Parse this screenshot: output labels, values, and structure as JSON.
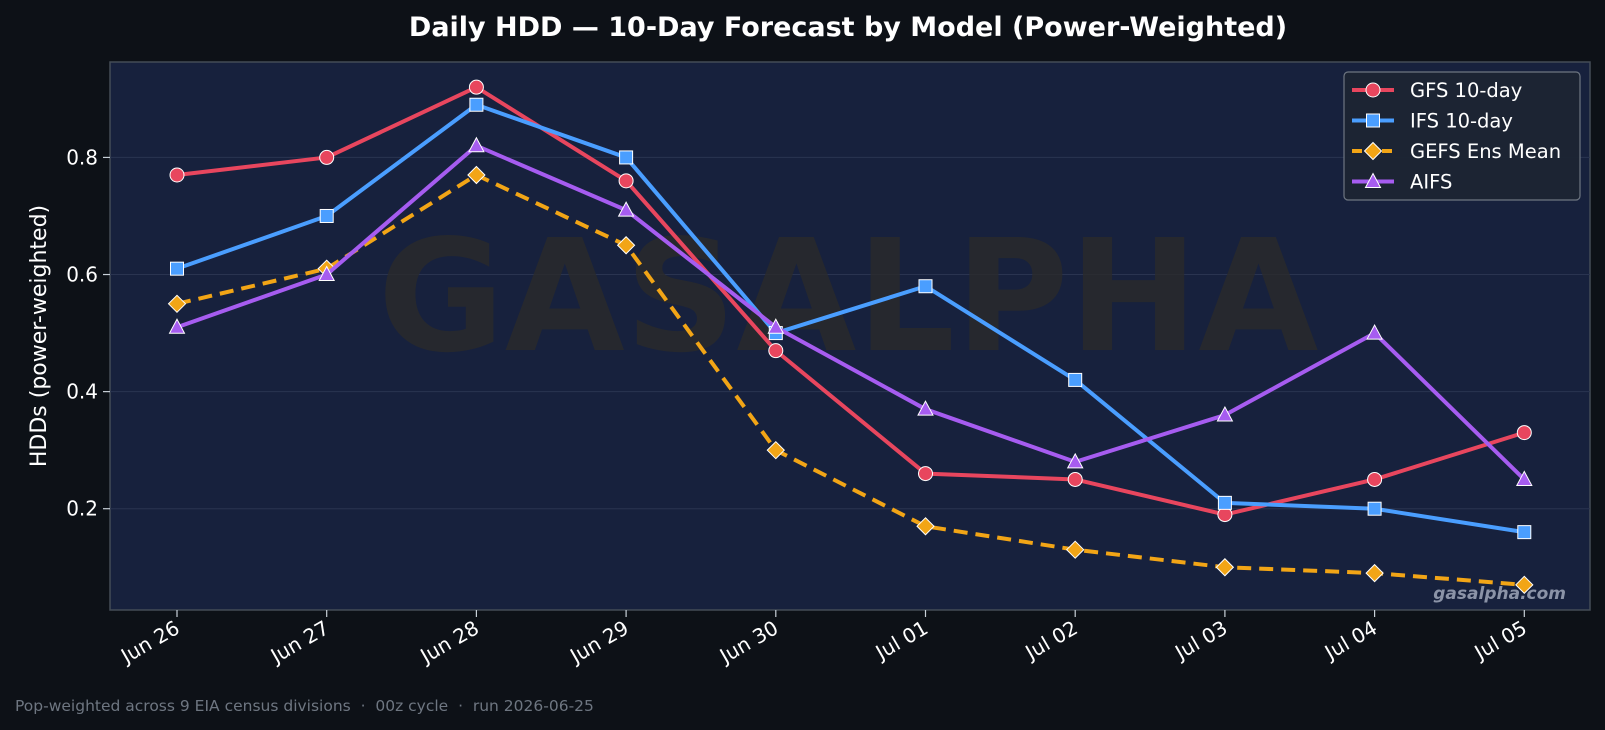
{
  "chart_data": {
    "type": "line",
    "title": "Daily HDD — 10-Day Forecast by Model (Power-Weighted)",
    "xlabel": "",
    "ylabel": "HDDs (power-weighted)",
    "categories": [
      "Jun 26",
      "Jun 27",
      "Jun 28",
      "Jun 29",
      "Jun 30",
      "Jul 01",
      "Jul 02",
      "Jul 03",
      "Jul 04",
      "Jul 05"
    ],
    "ylim": [
      0.027,
      0.963
    ],
    "yticks": [
      0.2,
      0.4,
      0.6,
      0.8
    ],
    "ytick_labels": [
      "0.2",
      "0.4",
      "0.6",
      "0.8"
    ],
    "grid": true,
    "legend_position": "top-right",
    "series": [
      {
        "name": "GFS 10-day",
        "color": "#e8465e",
        "dash": "solid",
        "marker": "circle",
        "values": [
          0.77,
          0.8,
          0.92,
          0.76,
          0.47,
          0.26,
          0.25,
          0.19,
          0.25,
          0.33
        ]
      },
      {
        "name": "IFS 10-day",
        "color": "#4a9eff",
        "dash": "solid",
        "marker": "square",
        "values": [
          0.61,
          0.7,
          0.89,
          0.8,
          0.5,
          0.58,
          0.42,
          0.21,
          0.2,
          0.16
        ]
      },
      {
        "name": "GEFS Ens Mean",
        "color": "#f2a516",
        "dash": "dashed",
        "marker": "diamond",
        "values": [
          0.55,
          0.61,
          0.77,
          0.65,
          0.3,
          0.17,
          0.13,
          0.1,
          0.09,
          0.07
        ]
      },
      {
        "name": "AIFS",
        "color": "#a65cf0",
        "dash": "solid",
        "marker": "triangle",
        "values": [
          0.51,
          0.6,
          0.82,
          0.71,
          0.51,
          0.37,
          0.28,
          0.36,
          0.5,
          0.25
        ]
      }
    ]
  },
  "watermark": "GASALPHA",
  "site_label": "gasalpha.com",
  "footnote": "Pop-weighted across 9 EIA census divisions  ·  00z cycle  ·  run 2026-06-25",
  "colors": {
    "background": "#0d1117",
    "plot_background": "#17213d",
    "text": "#ffffff",
    "muted": "#7d8590"
  }
}
